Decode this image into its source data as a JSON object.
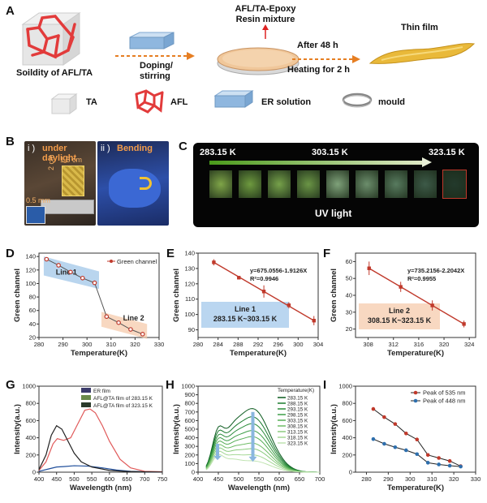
{
  "panels": {
    "A": {
      "label": "A",
      "solid_caption": "Soildity of AFL/TA",
      "doping_label": [
        "Doping/",
        "stirring"
      ],
      "resin_label": [
        "AFL/TA-Epoxy",
        "Resin mixture"
      ],
      "after_label": "After 48 h",
      "heating_label": "Heating for 2 h",
      "film_label": "Thin film",
      "legend": [
        {
          "icon": "ta-cube-icon",
          "text": "TA"
        },
        {
          "icon": "afl-framework-icon",
          "text": "AFL"
        },
        {
          "icon": "er-solution-icon",
          "text": "ER solution"
        },
        {
          "icon": "mould-ring-icon",
          "text": "mould"
        }
      ]
    },
    "B": {
      "label": "B",
      "sub_i": "i )",
      "sub_i_text": "under daylight",
      "sub_ii": "ii )",
      "sub_ii_text": "Bending",
      "dim_width": "1.5 cm",
      "dim_height": "2 cm",
      "dim_thick": "0.5 mm"
    },
    "C": {
      "label": "C",
      "temp_left": "283.15 K",
      "temp_mid": "303.15 K",
      "temp_right": "323.15 K",
      "caption": "UV light",
      "swatch_colors": [
        "#7fa548",
        "#6e9a3f",
        "#76a14a",
        "#6b9546",
        "#7fa27a",
        "#6c8e6c",
        "#587b5f",
        "#3d5a48",
        "#233a2c"
      ]
    }
  },
  "chart_data": [
    {
      "id": "D",
      "label": "D",
      "type": "line",
      "xlabel": "Temperature(K)",
      "ylabel": "Green channel",
      "xlim": [
        280,
        330
      ],
      "ylim": [
        20,
        145
      ],
      "xticks": [
        280,
        290,
        300,
        310,
        320,
        330
      ],
      "yticks": [
        20,
        40,
        60,
        80,
        100,
        120,
        140
      ],
      "series": [
        {
          "name": "Green channel",
          "color": "#c0392b",
          "x": [
            283.15,
            288.15,
            293.15,
            298.15,
            303.15,
            308.15,
            313.15,
            318.15,
            323.15
          ],
          "y": [
            136,
            127,
            117,
            108,
            101,
            51,
            42,
            32,
            25
          ]
        }
      ],
      "annotations": [
        "Line 1",
        "Line 2"
      ],
      "legend": "top-right"
    },
    {
      "id": "E",
      "label": "E",
      "type": "scatter",
      "xlabel": "Temperature(K)",
      "ylabel": "Green channel",
      "xlim": [
        280,
        304
      ],
      "ylim": [
        85,
        140
      ],
      "xticks": [
        280,
        284,
        288,
        292,
        296,
        300,
        304
      ],
      "yticks": [
        90,
        100,
        110,
        120,
        130,
        140
      ],
      "series": [
        {
          "color": "#c0392b",
          "x": [
            283.15,
            288.15,
            293.15,
            298.15,
            303.15
          ],
          "y": [
            134,
            124,
            115,
            106,
            96
          ],
          "err": [
            2,
            1,
            4,
            2,
            3
          ]
        }
      ],
      "fit_eq": "y=675.0556-1.9126X",
      "fit_r2": "R²=0.9946",
      "box_text": [
        "Line 1",
        "283.15 K~303.15 K"
      ]
    },
    {
      "id": "F",
      "label": "F",
      "type": "scatter",
      "xlabel": "Temperature(K)",
      "ylabel": "Green channel",
      "xlim": [
        306,
        325
      ],
      "ylim": [
        15,
        65
      ],
      "xticks": [
        308,
        312,
        316,
        320,
        324
      ],
      "yticks": [
        20,
        30,
        40,
        50,
        60
      ],
      "series": [
        {
          "color": "#c0392b",
          "x": [
            308.15,
            313.15,
            318.15,
            323.15
          ],
          "y": [
            56,
            45,
            34,
            23
          ],
          "err": [
            4,
            3,
            3,
            2
          ]
        }
      ],
      "fit_eq": "y=735.2156-2.2042X",
      "fit_r2": "R²=0.9955",
      "box_text": [
        "Line 2",
        "308.15 K~323.15 K"
      ]
    },
    {
      "id": "G",
      "label": "G",
      "type": "line",
      "xlabel": "Wavelength (nm)",
      "ylabel": "Intensity(a.u.)",
      "xlim": [
        400,
        750
      ],
      "ylim": [
        0,
        1000
      ],
      "xticks": [
        400,
        450,
        500,
        550,
        600,
        650,
        700,
        750
      ],
      "yticks": [
        0,
        200,
        400,
        600,
        800,
        1000
      ],
      "series": [
        {
          "name": "ER film",
          "color": "#1f4e9b",
          "x": [
            400,
            430,
            450,
            470,
            500,
            540,
            580,
            620,
            660,
            700,
            750
          ],
          "y": [
            10,
            40,
            60,
            65,
            75,
            70,
            50,
            25,
            10,
            5,
            3
          ]
        },
        {
          "name": "AFL@TA film of 283.15 K",
          "color": "#e05a5a",
          "x": [
            400,
            420,
            440,
            452,
            470,
            490,
            510,
            530,
            545,
            560,
            580,
            600,
            630,
            660,
            700,
            750
          ],
          "y": [
            20,
            120,
            330,
            390,
            370,
            400,
            560,
            720,
            735,
            690,
            540,
            360,
            150,
            50,
            10,
            5
          ]
        },
        {
          "name": "AFL@TA film of 323.15 K",
          "color": "#222222",
          "x": [
            400,
            420,
            435,
            450,
            465,
            480,
            500,
            520,
            550,
            600,
            650,
            700,
            750
          ],
          "y": [
            30,
            200,
            430,
            540,
            500,
            380,
            220,
            120,
            60,
            20,
            8,
            4,
            2
          ]
        }
      ],
      "legend": "top-right"
    },
    {
      "id": "H",
      "label": "H",
      "type": "line",
      "xlabel": "Wavelength (nm)",
      "ylabel": "Intensity(a.u.)",
      "xlim": [
        400,
        700
      ],
      "ylim": [
        0,
        1000
      ],
      "xticks": [
        400,
        450,
        500,
        550,
        600,
        650,
        700
      ],
      "yticks": [
        0,
        100,
        200,
        300,
        400,
        500,
        600,
        700,
        800,
        900,
        1000
      ],
      "legend_title": "Temperature(K)",
      "series": [
        {
          "name": "283.15 K",
          "color": "#0b5a1e",
          "p1": 370,
          "p2": 735
        },
        {
          "name": "288.15 K",
          "color": "#1a7a2e",
          "p1": 340,
          "p2": 640
        },
        {
          "name": "293.15 K",
          "color": "#2b8c3b",
          "p1": 310,
          "p2": 560
        },
        {
          "name": "298.15 K",
          "color": "#3e9e48",
          "p1": 285,
          "p2": 480
        },
        {
          "name": "303.15 K",
          "color": "#55ad55",
          "p1": 260,
          "p2": 410
        },
        {
          "name": "308.15 K",
          "color": "#6fbc66",
          "p1": 235,
          "p2": 335
        },
        {
          "name": "313.15 K",
          "color": "#8acb7d",
          "p1": 210,
          "p2": 270
        },
        {
          "name": "318.15 K",
          "color": "#a5d896",
          "p1": 185,
          "p2": 200
        },
        {
          "name": "323.15 K",
          "color": "#bfe3b0",
          "p1": 160,
          "p2": 130
        }
      ],
      "legend": "top-right"
    },
    {
      "id": "I",
      "label": "I",
      "type": "line",
      "xlabel": "Temperature(K)",
      "ylabel": "Intensity(a.u.)",
      "xlim": [
        275,
        330
      ],
      "ylim": [
        0,
        1000
      ],
      "xticks": [
        280,
        290,
        300,
        310,
        320,
        330
      ],
      "yticks": [
        0,
        200,
        400,
        600,
        800,
        1000
      ],
      "series": [
        {
          "name": "Peak of 535 nm",
          "color": "#c0392b",
          "x": [
            283.15,
            288.15,
            293.15,
            298.15,
            303.15,
            308.15,
            313.15,
            318.15,
            323.15
          ],
          "y": [
            735,
            640,
            560,
            450,
            380,
            200,
            165,
            130,
            70
          ]
        },
        {
          "name": "Peak of 448 nm",
          "color": "#2e6fad",
          "x": [
            283.15,
            288.15,
            293.15,
            298.15,
            303.15,
            308.15,
            313.15,
            318.15,
            323.15
          ],
          "y": [
            385,
            330,
            290,
            255,
            210,
            110,
            90,
            75,
            65
          ]
        }
      ],
      "legend": "top-right"
    }
  ]
}
